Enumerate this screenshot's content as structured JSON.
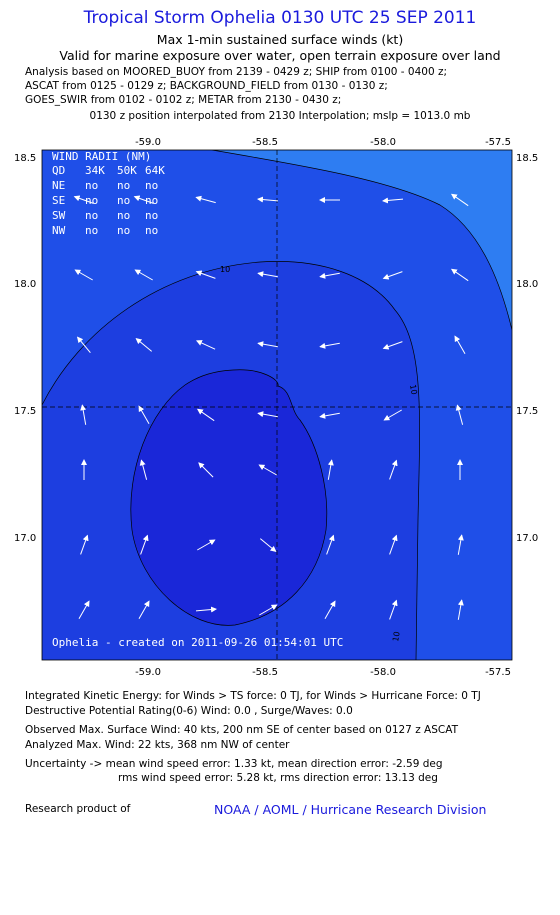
{
  "header": {
    "title": "Tropical Storm Ophelia 0130 UTC 25 SEP 2011",
    "subtitle1": "Max 1-min sustained surface winds (kt)",
    "subtitle2": "Valid for marine exposure over water, open terrain exposure over land",
    "analysis_lines": [
      "Analysis based on MOORED_BUOY from 2139 - 0429 z; SHIP from 0100 - 0400 z;",
      "ASCAT from 0125 - 0129 z; BACKGROUND_FIELD from 0130 - 0130 z;",
      "GOES_SWIR from 0102 - 0102 z; METAR from 2130 - 0430 z;"
    ],
    "interp_line": "0130 z position interpolated from 2130 Interpolation; mslp = 1013.0 mb"
  },
  "map": {
    "lon_ticks": [
      "-59.0",
      "-58.5",
      "-58.0",
      "-57.5"
    ],
    "lat_ticks": [
      "18.5",
      "18.0",
      "17.5",
      "17.0"
    ],
    "contour_label": "10",
    "colors": {
      "outer": "#1f4fe8",
      "middle": "#1d3ee0",
      "inner": "#1a27d8",
      "corner": "#2e7df2"
    },
    "wind_radii": {
      "title": "WIND RADII (NM)",
      "header": [
        "QD",
        "34K",
        "50K",
        "64K"
      ],
      "rows": [
        [
          "NE",
          "no",
          "no",
          "no"
        ],
        [
          "SE",
          "no",
          "no",
          "no"
        ],
        [
          "SW",
          "no",
          "no",
          "no"
        ],
        [
          "NW",
          "no",
          "no",
          "no"
        ]
      ]
    },
    "created_text": "Ophelia - created on 2011-09-26 01:54:01 UTC"
  },
  "footer": {
    "ike": "Integrated Kinetic Energy:  for Winds > TS force: 0 TJ,  for Winds > Hurricane Force: 0 TJ",
    "dpr": "Destructive Potential Rating(0-6)   Wind: 0.0 , Surge/Waves: 0.0",
    "obs_max": "Observed Max. Surface Wind: 40 kts, 200 nm SE of center based on 0127 z ASCAT",
    "analyzed_max": "Analyzed Max. Wind: 22 kts, 368 nm NW of center",
    "uncert1": "Uncertainty -> mean wind speed error: 1.33 kt,   mean direction error:  -2.59 deg",
    "uncert2": "rms wind speed error: 5.28 kt,   rms direction error: 13.13 deg",
    "research_label": "Research product of",
    "org": "NOAA / AOML / Hurricane Research Division"
  }
}
